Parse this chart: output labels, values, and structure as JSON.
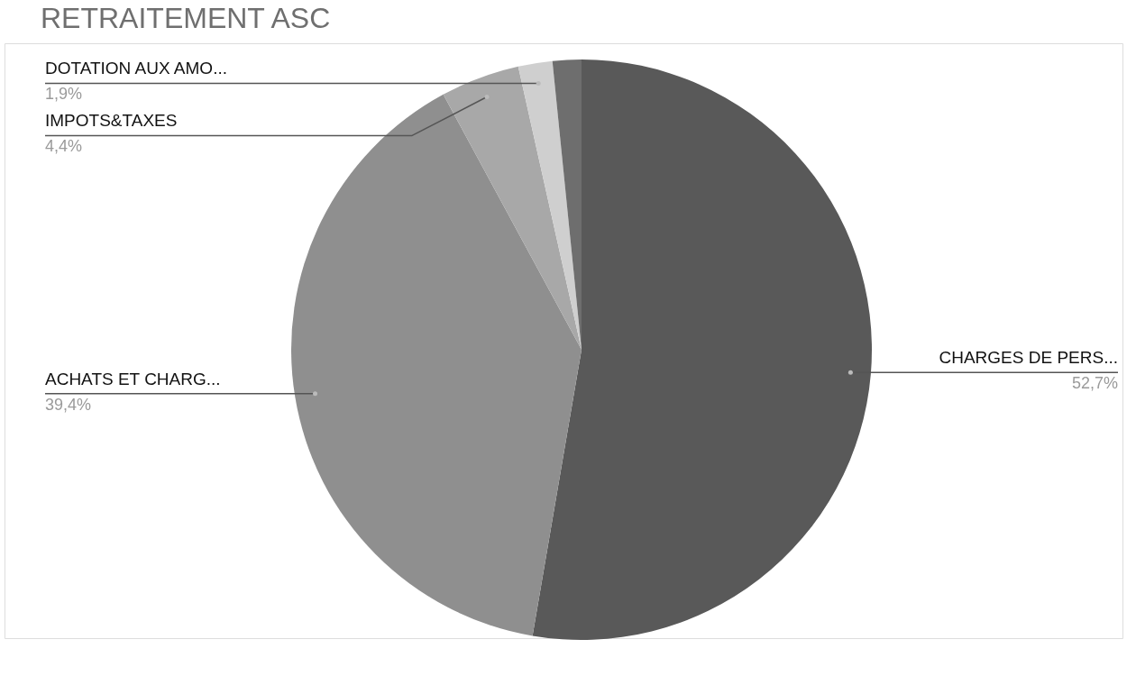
{
  "chart_data": {
    "type": "pie",
    "title": "RETRAITEMENT ASC",
    "categories": [
      "CHARGES DE PERS...",
      "ACHATS ET CHARG...",
      "IMPOTS&TAXES",
      "DOTATION AUX AMO...",
      null
    ],
    "values": [
      52.7,
      39.4,
      4.4,
      1.9,
      1.6
    ],
    "value_labels": [
      "52,7%",
      "39,4%",
      "4,4%",
      "1,9%",
      null
    ],
    "colors": [
      "#595959",
      "#8f8f8f",
      "#a8a8a8",
      "#cfcfcf",
      "#6e6e6e"
    ]
  }
}
